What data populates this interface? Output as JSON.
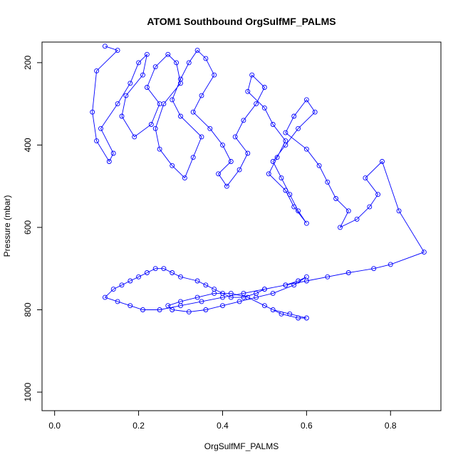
{
  "chart_data": {
    "type": "scatter",
    "title": "ATOM1 Southbound OrgSulfMF_PALMS",
    "xlabel": "OrgSulfMF_PALMS",
    "ylabel": "Pressure (mbar)",
    "xlim": [
      -0.03,
      0.92
    ],
    "ylim": [
      1045,
      150
    ],
    "y_reversed": true,
    "x_ticks": [
      "0.0",
      "0.2",
      "0.4",
      "0.6",
      "0.8"
    ],
    "x_tick_values": [
      0.0,
      0.2,
      0.4,
      0.6,
      0.8
    ],
    "y_ticks": [
      "200",
      "400",
      "600",
      "800",
      "1000"
    ],
    "y_tick_values": [
      200,
      400,
      600,
      800,
      1000
    ],
    "grid": false,
    "legend": "none",
    "series": [
      {
        "mode": "lines+markers",
        "color": "#0000ff",
        "x": [
          0.12,
          0.15,
          0.1,
          0.09,
          0.1,
          0.13,
          0.14,
          0.11,
          0.15,
          0.18,
          0.2,
          0.22,
          0.21,
          0.17,
          0.16,
          0.19,
          0.23,
          0.25,
          0.22,
          0.24,
          0.27,
          0.29,
          0.3,
          0.26,
          0.24,
          0.25,
          0.28,
          0.31,
          0.33,
          0.35,
          0.3,
          0.28,
          0.3,
          0.32,
          0.34,
          0.36,
          0.38,
          0.35,
          0.33,
          0.37,
          0.4,
          0.42,
          0.39,
          0.41,
          0.44,
          0.46,
          0.43,
          0.45,
          0.48,
          0.5,
          0.47,
          0.46,
          0.5,
          0.52,
          0.55,
          0.53,
          0.51,
          0.55,
          0.57,
          0.6,
          0.58,
          0.56,
          0.54,
          0.52,
          0.55,
          0.58,
          0.62,
          0.6,
          0.57,
          0.55,
          0.6,
          0.63,
          0.65,
          0.67,
          0.7,
          0.68,
          0.72,
          0.75,
          0.77,
          0.74,
          0.78,
          0.82,
          0.88,
          0.8,
          0.76,
          0.7,
          0.65,
          0.6,
          0.55,
          0.5,
          0.48,
          0.45,
          0.42,
          0.4,
          0.38,
          0.36,
          0.34,
          0.3,
          0.28,
          0.26,
          0.24,
          0.22,
          0.2,
          0.18,
          0.16,
          0.14,
          0.12,
          0.15,
          0.18,
          0.21,
          0.25,
          0.3,
          0.35,
          0.4,
          0.45,
          0.5,
          0.55,
          0.58,
          0.6,
          0.57,
          0.52,
          0.48,
          0.44,
          0.4,
          0.36,
          0.32,
          0.28,
          0.27,
          0.3,
          0.34,
          0.38,
          0.42,
          0.46,
          0.5,
          0.54,
          0.58,
          0.6,
          0.56,
          0.52
        ],
        "y": [
          160,
          170,
          220,
          320,
          390,
          440,
          420,
          360,
          300,
          250,
          200,
          180,
          230,
          280,
          330,
          380,
          350,
          300,
          260,
          210,
          180,
          200,
          250,
          300,
          360,
          410,
          450,
          480,
          430,
          380,
          330,
          290,
          240,
          200,
          170,
          190,
          230,
          280,
          320,
          360,
          400,
          440,
          470,
          500,
          460,
          420,
          380,
          340,
          300,
          260,
          230,
          270,
          310,
          350,
          390,
          430,
          470,
          510,
          550,
          590,
          560,
          520,
          480,
          440,
          400,
          360,
          320,
          290,
          330,
          370,
          410,
          450,
          490,
          530,
          560,
          600,
          580,
          550,
          520,
          480,
          440,
          560,
          660,
          690,
          700,
          710,
          720,
          730,
          740,
          750,
          760,
          770,
          770,
          760,
          750,
          740,
          730,
          720,
          710,
          700,
          700,
          710,
          720,
          730,
          740,
          750,
          770,
          780,
          790,
          800,
          800,
          790,
          780,
          770,
          760,
          750,
          740,
          730,
          720,
          740,
          760,
          770,
          780,
          790,
          800,
          805,
          800,
          790,
          780,
          770,
          760,
          760,
          770,
          790,
          810,
          820,
          820,
          810,
          800
        ]
      }
    ]
  }
}
